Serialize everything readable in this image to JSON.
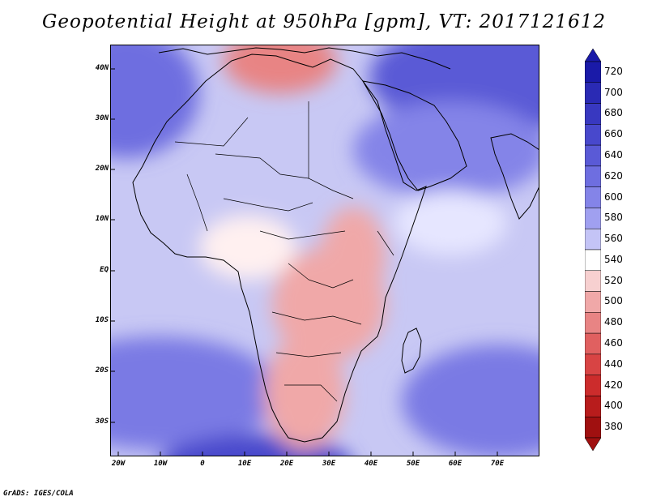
{
  "title": "Geopotential Height at 950hPa [gpm], VT: 2017121612",
  "credit": "GrADS: IGES/COLA",
  "lat_labels": [
    "40N",
    "30N",
    "20N",
    "10N",
    "EQ",
    "10S",
    "20S",
    "30S"
  ],
  "lon_labels": [
    "20W",
    "10W",
    "0",
    "10E",
    "20E",
    "30E",
    "40E",
    "50E",
    "60E",
    "70E"
  ],
  "colorbar": {
    "levels": [
      720,
      700,
      680,
      660,
      640,
      620,
      600,
      580,
      560,
      540,
      520,
      500,
      480,
      460,
      440,
      420,
      400,
      380
    ],
    "colors": [
      "#1a1aa8",
      "#2a2ab4",
      "#3838c0",
      "#4848cc",
      "#5a5ad6",
      "#6e6ee0",
      "#8484e8",
      "#a0a0f0",
      "#c4c4f6",
      "#ffffff",
      "#f7d0d0",
      "#f0a8a8",
      "#e88484",
      "#e06060",
      "#d84444",
      "#cc2c2c",
      "#b81c1c",
      "#a01010"
    ]
  },
  "colors": {
    "ocean": "#c4c4f6",
    "border": "#000000",
    "low": "#f0a8a8",
    "high": "#6e6ee0"
  }
}
